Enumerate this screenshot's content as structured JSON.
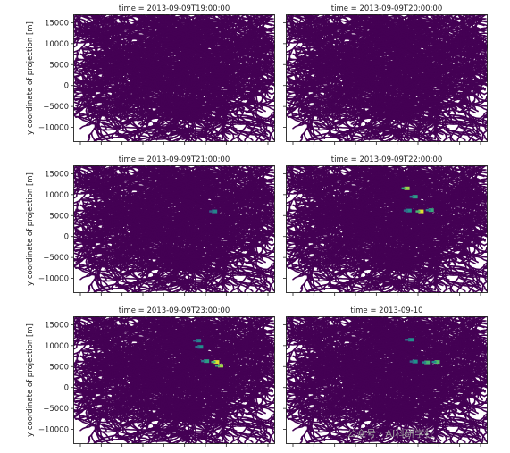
{
  "chart_data": {
    "type": "heatmap",
    "layout": {
      "rows": 3,
      "cols": 2
    },
    "ylabel": "y coordinate of projection [m]",
    "ylim": [
      -13500,
      17000
    ],
    "yticks": [
      15000,
      10000,
      5000,
      0,
      -5000,
      -10000
    ],
    "ytick_labels": [
      "15000",
      "10000",
      "5000",
      "0",
      "−5000",
      "−10000"
    ],
    "colormap": "viridis",
    "background_color": "#440154",
    "panels": [
      {
        "title": "time = 2013-09-09T19:00:00",
        "highlights": []
      },
      {
        "title": "time = 2013-09-09T20:00:00",
        "highlights": []
      },
      {
        "title": "time = 2013-09-09T21:00:00",
        "highlights": [
          {
            "x": 0.7,
            "y": 6000,
            "level": 0.45
          }
        ]
      },
      {
        "title": "time = 2013-09-09T22:00:00",
        "highlights": [
          {
            "x": 0.6,
            "y": 11500,
            "level": 0.85
          },
          {
            "x": 0.64,
            "y": 9500,
            "level": 0.55
          },
          {
            "x": 0.61,
            "y": 6200,
            "level": 0.5
          },
          {
            "x": 0.67,
            "y": 6000,
            "level": 0.95
          },
          {
            "x": 0.72,
            "y": 6300,
            "level": 0.6
          }
        ]
      },
      {
        "title": "time = 2013-09-09T23:00:00",
        "highlights": [
          {
            "x": 0.62,
            "y": 11200,
            "level": 0.45
          },
          {
            "x": 0.63,
            "y": 9700,
            "level": 0.5
          },
          {
            "x": 0.66,
            "y": 6300,
            "level": 0.55
          },
          {
            "x": 0.71,
            "y": 6100,
            "level": 0.95
          },
          {
            "x": 0.73,
            "y": 5200,
            "level": 0.85
          }
        ]
      },
      {
        "title": "time = 2013-09-10",
        "highlights": [
          {
            "x": 0.62,
            "y": 11400,
            "level": 0.5
          },
          {
            "x": 0.64,
            "y": 6200,
            "level": 0.5
          },
          {
            "x": 0.7,
            "y": 6000,
            "level": 0.65
          },
          {
            "x": 0.75,
            "y": 6100,
            "level": 0.7
          }
        ]
      }
    ]
  },
  "watermark": "公众号 · AI科研学社"
}
